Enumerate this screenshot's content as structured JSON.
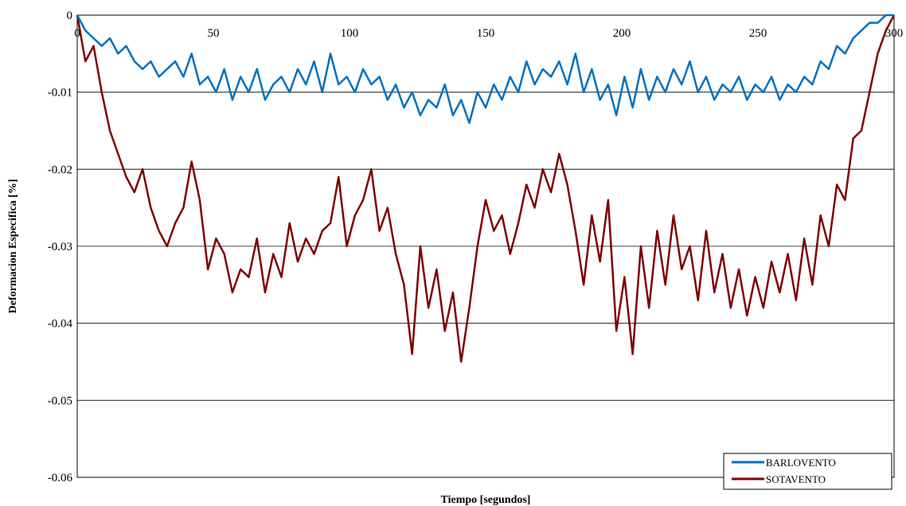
{
  "chart_data": {
    "type": "line",
    "title": "",
    "xlabel": "Tiempo [segundos]",
    "ylabel": "Deformacion Especifica  [%]",
    "xlim": [
      0,
      300
    ],
    "ylim": [
      -0.06,
      0
    ],
    "x_ticks": [
      "0",
      "50",
      "100",
      "150",
      "200",
      "250",
      "300"
    ],
    "y_ticks": [
      "0",
      "-0.01",
      "-0.02",
      "-0.03",
      "-0.04",
      "-0.05",
      "-0.06"
    ],
    "grid": "horizontal",
    "legend_position": "bottom-right",
    "series": [
      {
        "name": "BARLOVENTO",
        "color": "#0070c0",
        "x": [
          0,
          3,
          6,
          9,
          12,
          15,
          18,
          21,
          24,
          27,
          30,
          33,
          36,
          39,
          42,
          45,
          48,
          51,
          54,
          57,
          60,
          63,
          66,
          69,
          72,
          75,
          78,
          81,
          84,
          87,
          90,
          93,
          96,
          99,
          102,
          105,
          108,
          111,
          114,
          117,
          120,
          123,
          126,
          129,
          132,
          135,
          138,
          141,
          144,
          147,
          150,
          153,
          156,
          159,
          162,
          165,
          168,
          171,
          174,
          177,
          180,
          183,
          186,
          189,
          192,
          195,
          198,
          201,
          204,
          207,
          210,
          213,
          216,
          219,
          222,
          225,
          228,
          231,
          234,
          237,
          240,
          243,
          246,
          249,
          252,
          255,
          258,
          261,
          264,
          267,
          270,
          273,
          276,
          279,
          282,
          285,
          288,
          291,
          294,
          297,
          300
        ],
        "y": [
          0,
          -0.002,
          -0.003,
          -0.004,
          -0.003,
          -0.005,
          -0.004,
          -0.006,
          -0.007,
          -0.006,
          -0.008,
          -0.007,
          -0.006,
          -0.008,
          -0.005,
          -0.009,
          -0.008,
          -0.01,
          -0.007,
          -0.011,
          -0.008,
          -0.01,
          -0.007,
          -0.011,
          -0.009,
          -0.008,
          -0.01,
          -0.007,
          -0.009,
          -0.006,
          -0.01,
          -0.005,
          -0.009,
          -0.008,
          -0.01,
          -0.007,
          -0.009,
          -0.008,
          -0.011,
          -0.009,
          -0.012,
          -0.01,
          -0.013,
          -0.011,
          -0.012,
          -0.009,
          -0.013,
          -0.011,
          -0.014,
          -0.01,
          -0.012,
          -0.009,
          -0.011,
          -0.008,
          -0.01,
          -0.006,
          -0.009,
          -0.007,
          -0.008,
          -0.006,
          -0.009,
          -0.005,
          -0.01,
          -0.007,
          -0.011,
          -0.009,
          -0.013,
          -0.008,
          -0.012,
          -0.007,
          -0.011,
          -0.008,
          -0.01,
          -0.007,
          -0.009,
          -0.006,
          -0.01,
          -0.008,
          -0.011,
          -0.009,
          -0.01,
          -0.008,
          -0.011,
          -0.009,
          -0.01,
          -0.008,
          -0.011,
          -0.009,
          -0.01,
          -0.008,
          -0.009,
          -0.006,
          -0.007,
          -0.004,
          -0.005,
          -0.003,
          -0.002,
          -0.001,
          -0.001,
          0,
          0
        ]
      },
      {
        "name": "SOTAVENTO",
        "color": "#7f0000",
        "x": [
          0,
          3,
          6,
          9,
          12,
          15,
          18,
          21,
          24,
          27,
          30,
          33,
          36,
          39,
          42,
          45,
          48,
          51,
          54,
          57,
          60,
          63,
          66,
          69,
          72,
          75,
          78,
          81,
          84,
          87,
          90,
          93,
          96,
          99,
          102,
          105,
          108,
          111,
          114,
          117,
          120,
          123,
          126,
          129,
          132,
          135,
          138,
          141,
          144,
          147,
          150,
          153,
          156,
          159,
          162,
          165,
          168,
          171,
          174,
          177,
          180,
          183,
          186,
          189,
          192,
          195,
          198,
          201,
          204,
          207,
          210,
          213,
          216,
          219,
          222,
          225,
          228,
          231,
          234,
          237,
          240,
          243,
          246,
          249,
          252,
          255,
          258,
          261,
          264,
          267,
          270,
          273,
          276,
          279,
          282,
          285,
          288,
          291,
          294,
          297,
          300
        ],
        "y": [
          0,
          -0.006,
          -0.004,
          -0.01,
          -0.015,
          -0.018,
          -0.021,
          -0.023,
          -0.02,
          -0.025,
          -0.028,
          -0.03,
          -0.027,
          -0.025,
          -0.019,
          -0.024,
          -0.033,
          -0.029,
          -0.031,
          -0.036,
          -0.033,
          -0.034,
          -0.029,
          -0.036,
          -0.031,
          -0.034,
          -0.027,
          -0.032,
          -0.029,
          -0.031,
          -0.028,
          -0.027,
          -0.021,
          -0.03,
          -0.026,
          -0.024,
          -0.02,
          -0.028,
          -0.025,
          -0.031,
          -0.035,
          -0.044,
          -0.03,
          -0.038,
          -0.033,
          -0.041,
          -0.036,
          -0.045,
          -0.038,
          -0.03,
          -0.024,
          -0.028,
          -0.026,
          -0.031,
          -0.027,
          -0.022,
          -0.025,
          -0.02,
          -0.023,
          -0.018,
          -0.022,
          -0.028,
          -0.035,
          -0.026,
          -0.032,
          -0.024,
          -0.041,
          -0.034,
          -0.044,
          -0.03,
          -0.038,
          -0.028,
          -0.035,
          -0.026,
          -0.033,
          -0.03,
          -0.037,
          -0.028,
          -0.036,
          -0.031,
          -0.038,
          -0.033,
          -0.039,
          -0.034,
          -0.038,
          -0.032,
          -0.036,
          -0.031,
          -0.037,
          -0.029,
          -0.035,
          -0.026,
          -0.03,
          -0.022,
          -0.024,
          -0.016,
          -0.015,
          -0.01,
          -0.005,
          -0.002,
          0
        ]
      }
    ]
  }
}
